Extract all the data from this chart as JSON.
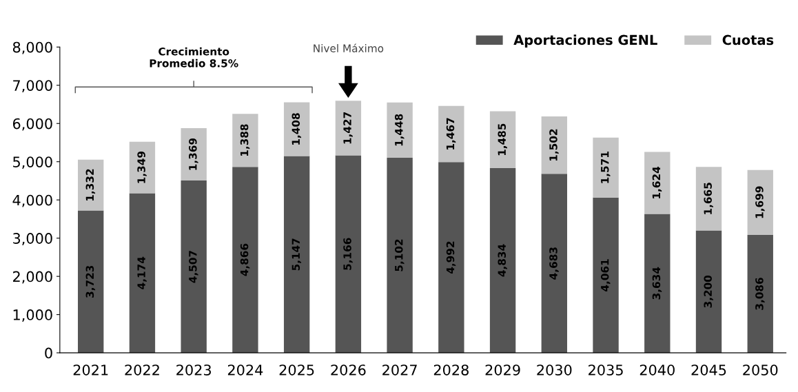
{
  "chart_data": {
    "type": "bar",
    "stacked": true,
    "categories": [
      "2021",
      "2022",
      "2023",
      "2024",
      "2025",
      "2026",
      "2027",
      "2028",
      "2029",
      "2030",
      "2035",
      "2040",
      "2045",
      "2050"
    ],
    "series": [
      {
        "name": "Aportaciones GENL",
        "color": "#555555",
        "values": [
          3723,
          4174,
          4507,
          4866,
          5147,
          5166,
          5102,
          4992,
          4834,
          4683,
          4061,
          3634,
          3200,
          3086
        ],
        "value_labels": [
          "3,723",
          "4,174",
          "4,507",
          "4,866",
          "5,147",
          "5,166",
          "5,102",
          "4,992",
          "4,834",
          "4,683",
          "4,061",
          "3,634",
          "3,200",
          "3,086"
        ]
      },
      {
        "name": "Cuotas",
        "color": "#c4c4c4",
        "values": [
          1332,
          1349,
          1369,
          1388,
          1408,
          1427,
          1448,
          1467,
          1485,
          1502,
          1571,
          1624,
          1665,
          1699
        ],
        "value_labels": [
          "1,332",
          "1,349",
          "1,369",
          "1,388",
          "1,408",
          "1,427",
          "1,448",
          "1,467",
          "1,485",
          "1,502",
          "1,571",
          "1,624",
          "1,665",
          "1,699"
        ]
      }
    ],
    "ylim": [
      0,
      8000
    ],
    "yticks": [
      0,
      {
        "value": 1000,
        "label": "1,000"
      },
      {
        "value": 2000,
        "label": "2,000"
      },
      {
        "value": 3000,
        "label": "3,000"
      },
      {
        "value": 4000,
        "label": "4,000"
      },
      {
        "value": 5000,
        "label": "5,000"
      },
      {
        "value": 6000,
        "label": "6,000"
      },
      {
        "value": 7000,
        "label": "7,000"
      },
      {
        "value": 8000,
        "label": "8,000"
      }
    ],
    "annotations": [
      "Crecimiento\nPromedio 8.5%",
      "Nivel Máximo"
    ],
    "legend": "top right",
    "grid": false
  }
}
